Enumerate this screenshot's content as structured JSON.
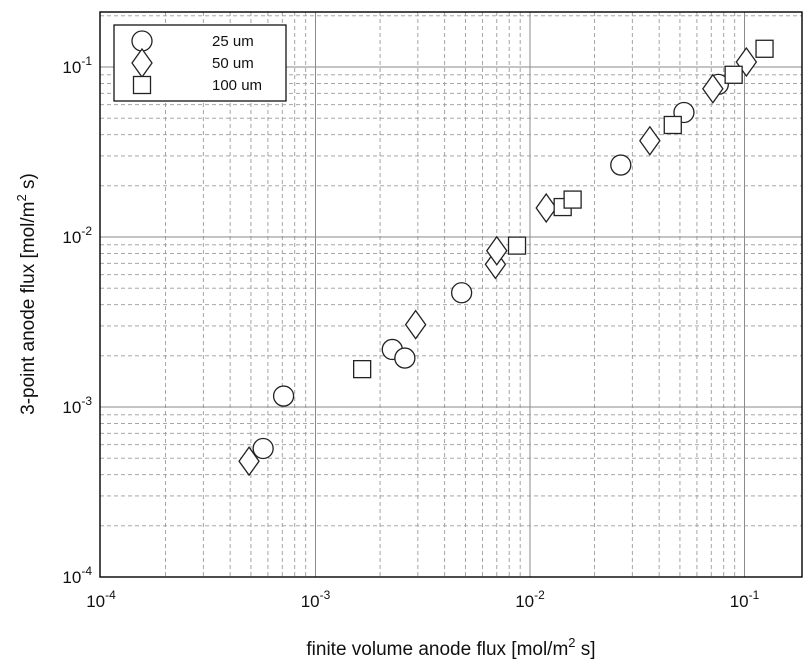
{
  "chart_data": {
    "type": "scatter",
    "scale": {
      "x": "log",
      "y": "log"
    },
    "xlim": [
      0.0001,
      0.15
    ],
    "ylim": [
      0.0001,
      0.2
    ],
    "grid": true,
    "legend_position": "top-left",
    "xlabel": {
      "text": "finite volume anode flux [mol/m",
      "sup": "2",
      "post": " s]"
    },
    "ylabel": {
      "text": "3-point anode flux [mol/m",
      "sup": "2",
      "post": " s)"
    },
    "x_ticks": [
      {
        "value": 0.0001,
        "base": "10",
        "exp": "-4"
      },
      {
        "value": 0.001,
        "base": "10",
        "exp": "-3"
      },
      {
        "value": 0.01,
        "base": "10",
        "exp": "-2"
      },
      {
        "value": 0.1,
        "base": "10",
        "exp": "-1"
      }
    ],
    "y_ticks": [
      {
        "value": 0.0001,
        "base": "10",
        "exp": "-4"
      },
      {
        "value": 0.001,
        "base": "10",
        "exp": "-3"
      },
      {
        "value": 0.01,
        "base": "10",
        "exp": "-2"
      },
      {
        "value": 0.1,
        "base": "10",
        "exp": "-1"
      }
    ],
    "series": [
      {
        "name": "25 um",
        "marker": "circle",
        "points": [
          [
            0.00057,
            0.00057
          ],
          [
            0.00071,
            0.00116
          ],
          [
            0.00228,
            0.00218
          ],
          [
            0.00261,
            0.00194
          ],
          [
            0.0048,
            0.0047
          ],
          [
            0.0265,
            0.0265
          ],
          [
            0.0522,
            0.054
          ],
          [
            0.0755,
            0.079
          ]
        ]
      },
      {
        "name": "50 um",
        "marker": "diamond",
        "points": [
          [
            0.00049,
            0.00048
          ],
          [
            0.00293,
            0.00305
          ],
          [
            0.0069,
            0.0069
          ],
          [
            0.007,
            0.0083
          ],
          [
            0.0119,
            0.0148
          ],
          [
            0.0362,
            0.0368
          ],
          [
            0.0712,
            0.0745
          ],
          [
            0.102,
            0.107
          ]
        ]
      },
      {
        "name": "100 um",
        "marker": "square",
        "points": [
          [
            0.00165,
            0.00167
          ],
          [
            0.0087,
            0.0089
          ],
          [
            0.0142,
            0.015
          ],
          [
            0.0158,
            0.0166
          ],
          [
            0.0463,
            0.0456
          ],
          [
            0.089,
            0.09
          ],
          [
            0.124,
            0.128
          ]
        ]
      }
    ]
  }
}
